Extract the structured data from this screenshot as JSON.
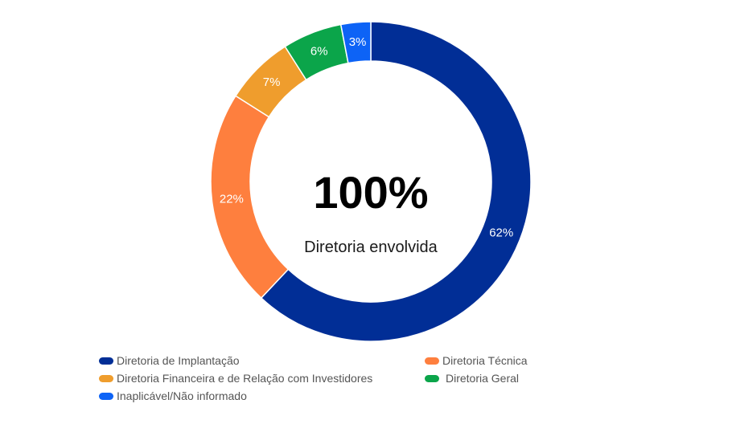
{
  "center": {
    "value": "100%",
    "caption": "Diretoria envolvida"
  },
  "chart_data": {
    "type": "pie",
    "style": "donut",
    "categories": [
      "Diretoria de Implantação",
      "Diretoria Técnica",
      "Diretoria Financeira e de Relação com Investidores",
      "Diretoria Geral",
      "Inaplicável/Não informado"
    ],
    "values": [
      62,
      22,
      7,
      6,
      3
    ],
    "value_labels": [
      "62%",
      "22%",
      "7%",
      "6%",
      "3%"
    ],
    "colors": [
      "#012e96",
      "#fe7f3e",
      "#ef9d2d",
      "#0ba54a",
      "#0d63f6"
    ],
    "legend": "bottom"
  }
}
